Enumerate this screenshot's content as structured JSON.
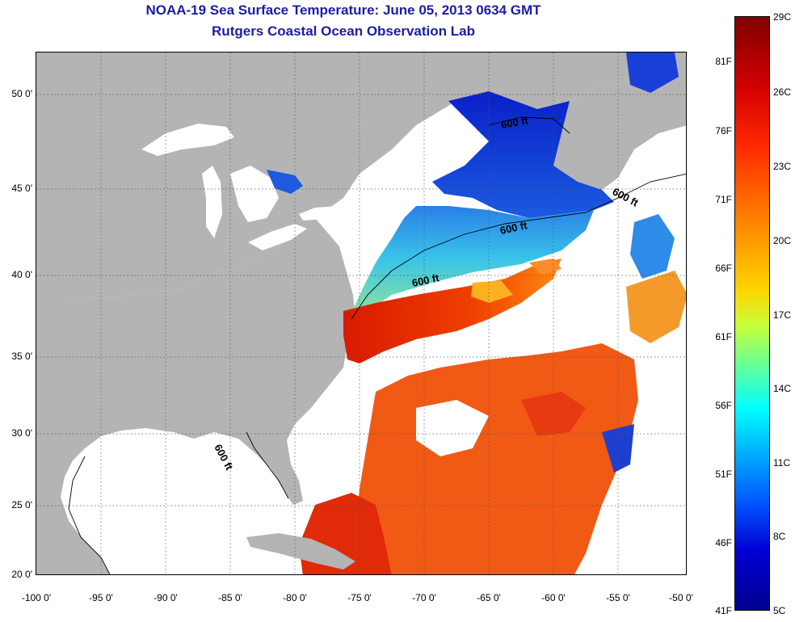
{
  "title": "NOAA-19 Sea Surface Temperature:  June 05, 2013 0634 GMT",
  "subtitle": "Rutgers Coastal Ocean Observation Lab",
  "y_ticks": [
    "50 0'",
    "45 0'",
    "40 0'",
    "35 0'",
    "30 0'",
    "25 0'",
    "20 0'"
  ],
  "x_ticks": [
    "-100 0'",
    "-95 0'",
    "-90 0'",
    "-85 0'",
    "-80 0'",
    "-75 0'",
    "-70 0'",
    "-65 0'",
    "-60 0'",
    "-55 0'",
    "-50 0'"
  ],
  "contour_label": "600 ft",
  "colorbar": {
    "fahrenheit": [
      "81F",
      "76F",
      "71F",
      "66F",
      "61F",
      "56F",
      "51F",
      "46F",
      "41F"
    ],
    "celsius": [
      "29C",
      "26C",
      "23C",
      "20C",
      "17C",
      "14C",
      "11C",
      "8C",
      "5C"
    ]
  },
  "colors": {
    "land": "#b4b4b4",
    "title": "#1c1ca8",
    "no_data": "#ffffff"
  }
}
